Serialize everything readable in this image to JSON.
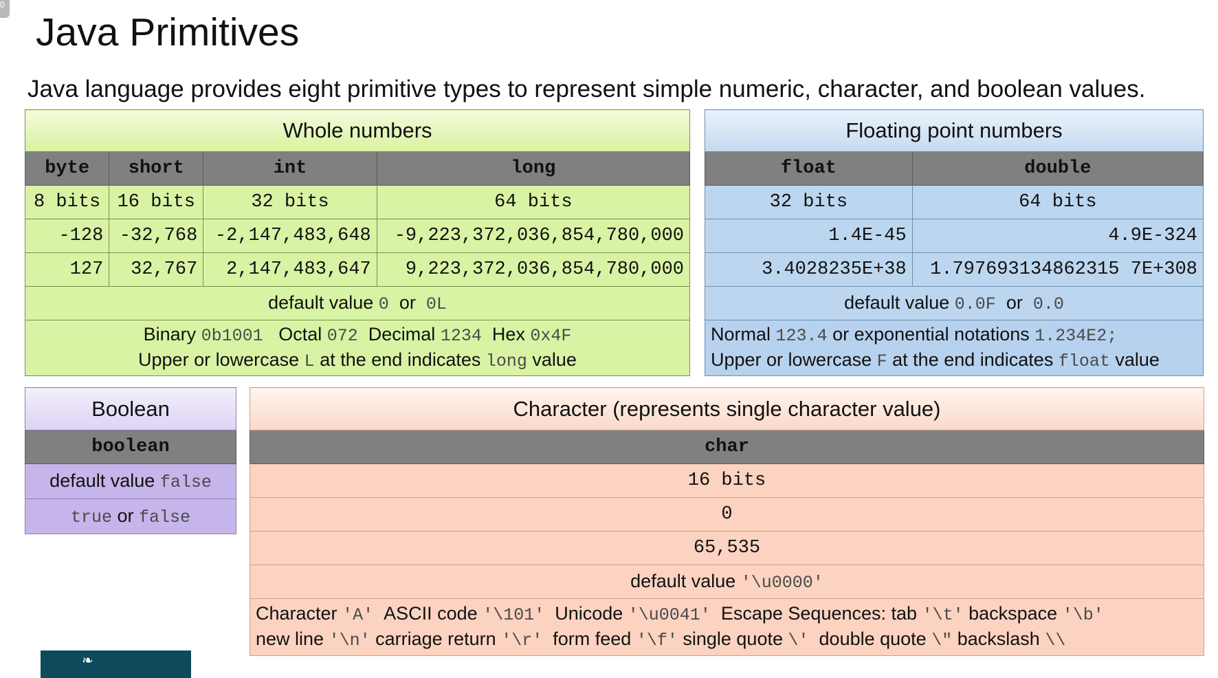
{
  "corner": "0",
  "title": "Java Primitives",
  "intro": "Java language provides eight primitive types to represent simple numeric, character, and boolean values.",
  "whole": {
    "title": "Whole numbers",
    "headers": [
      "byte",
      "short",
      "int",
      "long"
    ],
    "bits": [
      "8 bits",
      "16 bits",
      "32 bits",
      "64 bits"
    ],
    "min": [
      "-128",
      "-32,768",
      "-2,147,483,648",
      "-9,223,372,036,854,780,000"
    ],
    "max": [
      "127",
      "32,767",
      "2,147,483,647",
      "9,223,372,036,854,780,000"
    ],
    "default_label": "default value",
    "default_val1": "0",
    "default_or": "or",
    "default_val2": "0L",
    "literals": {
      "binary_label": "Binary",
      "binary_val": "0b1001",
      "octal_label": "Octal",
      "octal_val": "072",
      "decimal_label": "Decimal",
      "decimal_val": "1234",
      "hex_label": "Hex",
      "hex_val": "0x4F",
      "suffix_pre": "Upper or lowercase",
      "suffix_char": "L",
      "suffix_mid": "at the end indicates",
      "suffix_type": "long",
      "suffix_post": "value"
    }
  },
  "float": {
    "title": "Floating point numbers",
    "headers": [
      "float",
      "double"
    ],
    "bits": [
      "32 bits",
      "64 bits"
    ],
    "min": [
      "1.4E-45",
      "4.9E-324"
    ],
    "max": [
      "3.4028235E+38",
      "1.797693134862315 7E+308"
    ],
    "default_label": "default value",
    "default_val1": "0.0F",
    "default_or": "or",
    "default_val2": "0.0",
    "literals": {
      "normal_label": "Normal",
      "normal_val": "123.4",
      "exp_label": "or exponential notations",
      "exp_val": "1.234E2;",
      "suffix_pre": "Upper or lowercase",
      "suffix_char": "F",
      "suffix_mid": "at the end indicates",
      "suffix_type": "float",
      "suffix_post": "value"
    }
  },
  "boolean": {
    "title": "Boolean",
    "header": "boolean",
    "default_label": "default value",
    "default_val": "false",
    "values_true": "true",
    "values_or": "or",
    "values_false": "false"
  },
  "char": {
    "title": "Character (represents single character value)",
    "header": "char",
    "bits": "16 bits",
    "min": "0",
    "max": "65,535",
    "default_label": "default value",
    "default_val": "'\\u0000'",
    "line1": {
      "character_label": "Character",
      "character_val": "'A'",
      "ascii_label": "ASCII code",
      "ascii_val": "'\\101'",
      "unicode_label": "Unicode",
      "unicode_val": "'\\u0041'",
      "escape_label": "Escape Sequences: tab",
      "tab_val": "'\\t'",
      "backspace_label": "backspace",
      "backspace_val": "'\\b'"
    },
    "line2": {
      "newline_label": "new line",
      "newline_val": "'\\n'",
      "cr_label": "carriage return",
      "cr_val": "'\\r'",
      "ff_label": "form feed",
      "ff_val": "'\\f'",
      "sq_label": "single quote",
      "sq_val": "\\'",
      "dq_label": "double quote",
      "dq_val": "\\\"",
      "bs_label": "backslash",
      "bs_val": "\\\\"
    }
  },
  "colors": {
    "whole": "#d9f3a4",
    "float": "#bcd6f0",
    "boolean": "#c6b5ea",
    "char": "#fbd3c0",
    "header": "#808080"
  }
}
